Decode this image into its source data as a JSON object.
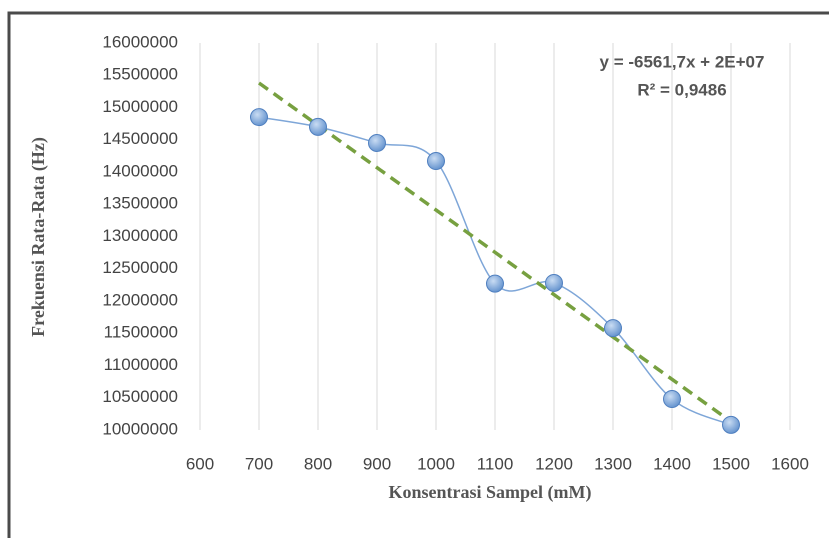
{
  "chart_data": {
    "type": "scatter",
    "x_label": "Konsentrasi Sampel (mM)",
    "y_label": "Frekuensi Rata-Rata (Hz)",
    "x": [
      700,
      800,
      900,
      1000,
      1100,
      1200,
      1300,
      1400,
      1500
    ],
    "values": [
      14850000,
      14700000,
      14450000,
      14170000,
      12270000,
      12280000,
      11580000,
      10480000,
      10080000
    ],
    "color": "#7ea6d8",
    "trendline": {
      "x": [
        700,
        1500
      ],
      "values": [
        15380000,
        10130000
      ],
      "color": "#77a040"
    },
    "annotations": [
      "y = -6561,7x + 2E+07",
      "R² = 0,9486"
    ],
    "xlim": [
      600,
      1600
    ],
    "xticks": [
      600,
      700,
      800,
      900,
      1000,
      1100,
      1200,
      1300,
      1400,
      1500,
      1600
    ],
    "ylim": [
      10000000,
      16000000
    ],
    "yticks": [
      10000000,
      10500000,
      11000000,
      11500000,
      12000000,
      12500000,
      13000000,
      13500000,
      14000000,
      14500000,
      15000000,
      15500000,
      16000000
    ],
    "grid": "x"
  }
}
